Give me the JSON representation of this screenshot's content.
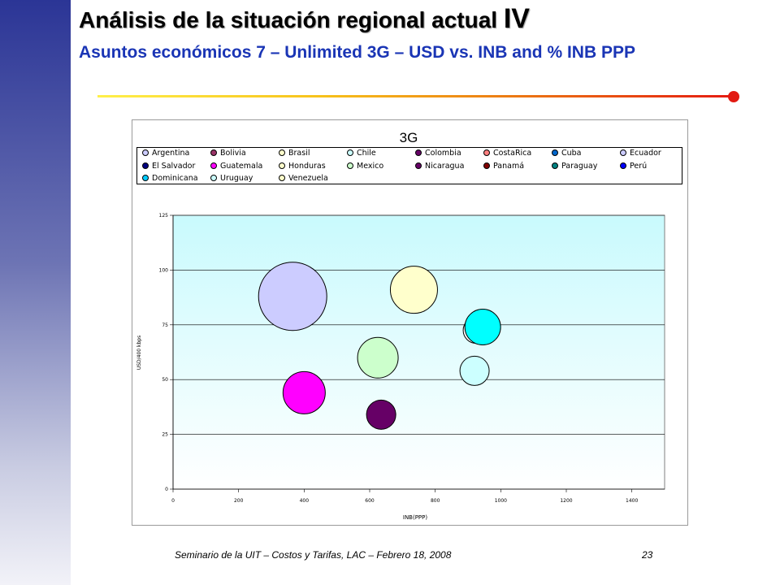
{
  "slide": {
    "title": "Análisis de la situación regional actual",
    "title_roman": "IV",
    "subtitle": "Asuntos económicos 7 – Unlimited 3G – USD vs. INB and % INB PPP",
    "footer": "Seminario de la UIT – Costos y Tarifas, LAC – Febrero 18, 2008",
    "page_number": "23"
  },
  "chart_data": {
    "type": "bubble",
    "title": "3G",
    "xlabel": "INB(PPP)",
    "ylabel": "USD/400 kbps",
    "xlim": [
      0,
      1500
    ],
    "ylim": [
      0,
      125
    ],
    "xticks": [
      "0",
      "200",
      "400",
      "600",
      "800",
      "1000",
      "1200",
      "1400"
    ],
    "yticks": [
      "0",
      "25",
      "50",
      "75",
      "100",
      "125"
    ],
    "grid": true,
    "legend_position": "top",
    "legend": [
      {
        "name": "Argentina",
        "color": "#ccccff"
      },
      {
        "name": "Bolivia",
        "color": "#993366"
      },
      {
        "name": "Brasil",
        "color": "#ffffcc"
      },
      {
        "name": "Chile",
        "color": "#ccffff"
      },
      {
        "name": "Colombia",
        "color": "#660066"
      },
      {
        "name": "CostaRica",
        "color": "#ff8080"
      },
      {
        "name": "Cuba",
        "color": "#0066cc"
      },
      {
        "name": "Ecuador",
        "color": "#ccccff"
      },
      {
        "name": "El Salvador",
        "color": "#000080"
      },
      {
        "name": "Guatemala",
        "color": "#ff00ff"
      },
      {
        "name": "Honduras",
        "color": "#ffffcc"
      },
      {
        "name": "Mexico",
        "color": "#ccffcc"
      },
      {
        "name": "Nicaragua",
        "color": "#660066"
      },
      {
        "name": "Panamá",
        "color": "#800000"
      },
      {
        "name": "Paraguay",
        "color": "#008080"
      },
      {
        "name": "Perú",
        "color": "#0000ff"
      },
      {
        "name": "Dominicana",
        "color": "#00ccff"
      },
      {
        "name": "Uruguay",
        "color": "#ccffff"
      },
      {
        "name": "Venezuela",
        "color": "#ffffcc"
      }
    ],
    "points": [
      {
        "x": 365,
        "y": 88,
        "size": 42,
        "color": "#ccccff"
      },
      {
        "x": 735,
        "y": 91,
        "size": 29,
        "color": "#ffffcc"
      },
      {
        "x": 925,
        "y": 72.5,
        "size": 16,
        "color": "#ffffff"
      },
      {
        "x": 945,
        "y": 74,
        "size": 22,
        "color": "#00ffff"
      },
      {
        "x": 920,
        "y": 54,
        "size": 18,
        "color": "#ccffff"
      },
      {
        "x": 625,
        "y": 60,
        "size": 25,
        "color": "#ccffcc"
      },
      {
        "x": 400,
        "y": 44,
        "size": 26,
        "color": "#ff00ff"
      },
      {
        "x": 635,
        "y": 34,
        "size": 18,
        "color": "#660066"
      }
    ]
  }
}
